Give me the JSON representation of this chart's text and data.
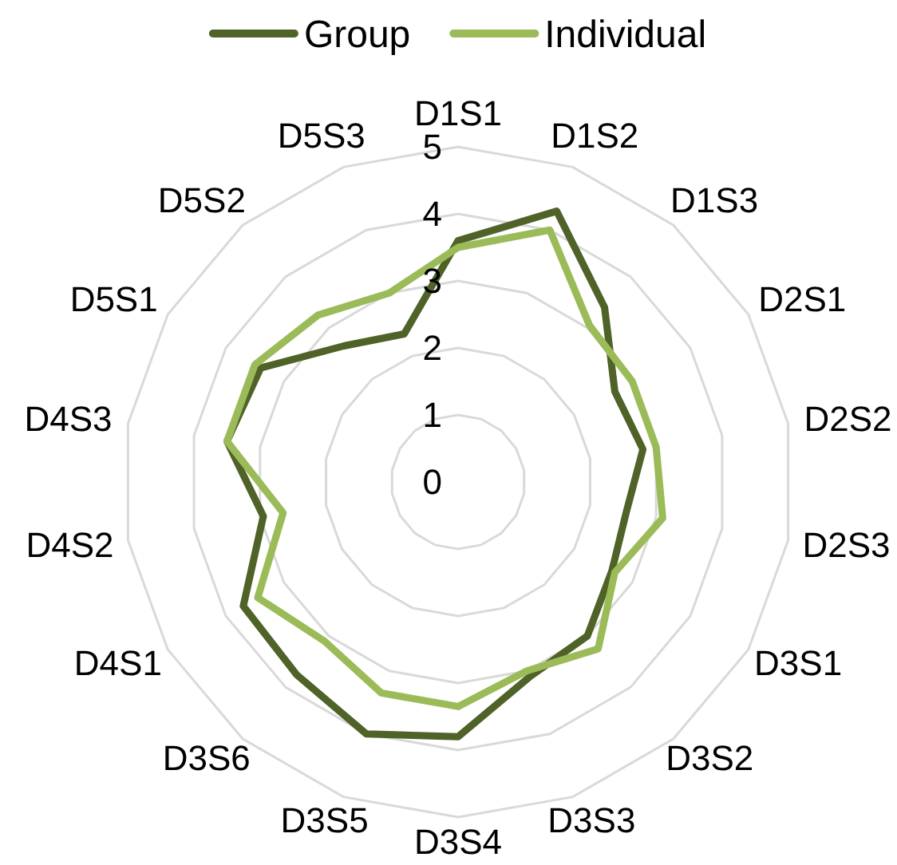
{
  "chart_data": {
    "type": "radar",
    "categories": [
      "D1S1",
      "D1S2",
      "D1S3",
      "D2S1",
      "D2S2",
      "D2S3",
      "D3S1",
      "D3S2",
      "D3S3",
      "D3S4",
      "D3S5",
      "D3S6",
      "D4S1",
      "D4S2",
      "D4S3",
      "D5S1",
      "D5S2",
      "D5S3"
    ],
    "series": [
      {
        "name": "Group",
        "color": "#4f6228",
        "values": [
          3.6,
          4.3,
          3.4,
          2.7,
          2.8,
          2.55,
          2.65,
          3.0,
          3.1,
          3.8,
          4.0,
          3.75,
          3.7,
          2.95,
          3.5,
          3.4,
          2.65,
          2.35
        ]
      },
      {
        "name": "Individual",
        "color": "#9bbb59",
        "values": [
          3.5,
          4.0,
          3.05,
          3.0,
          3.0,
          3.1,
          2.7,
          3.25,
          3.0,
          3.35,
          3.35,
          3.1,
          3.45,
          2.65,
          3.5,
          3.5,
          3.25,
          3.0
        ]
      }
    ],
    "ylim": [
      0,
      5
    ],
    "yticks": [
      0,
      1,
      2,
      3,
      4,
      5
    ],
    "grid": true,
    "legend": "top"
  }
}
